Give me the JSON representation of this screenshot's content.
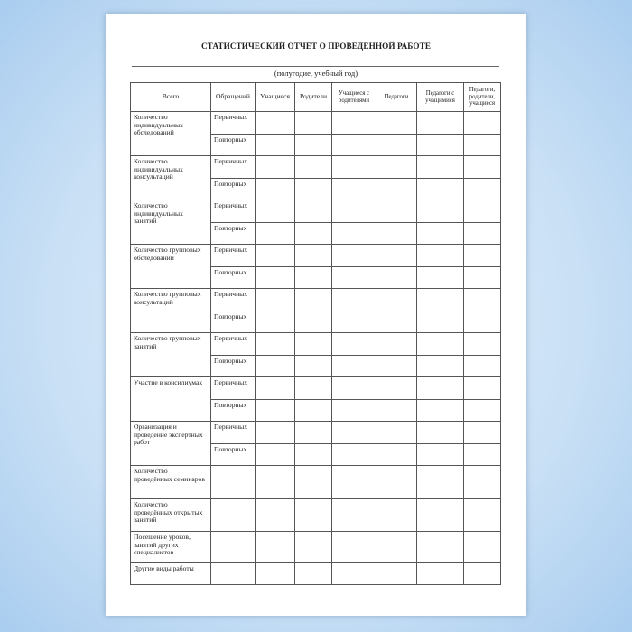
{
  "title": "СТАТИСТИЧЕСКИЙ ОТЧЁТ О ПРОВЕДЕННОЙ РАБОТЕ",
  "subtitle": "(полугодие, учебный год)",
  "columns": [
    "Всего",
    "Обращений",
    "Учащиеся",
    "Родители",
    "Учащиеся с родителями",
    "Педагоги",
    "Педагоги с учащимися",
    "Педагоги, родители, учащиеся"
  ],
  "types": [
    "Первичных",
    "Повторных"
  ],
  "paired_rows": [
    "Количество индивидуальных обследований",
    "Количество индивидуальных консультаций",
    "Количество индивидуальных занятий",
    "Количество групповых обследований",
    "Количество групповых консультаций",
    "Количество групповых занятий",
    "Участие в консилиумах",
    "Организация и проведение экспертных работ"
  ],
  "single_rows": [
    "Количество проведённых семинаров",
    "Количество проведённых открытых занятий",
    "Посещение уроков, занятий других специалистов",
    "Другие виды работы"
  ]
}
